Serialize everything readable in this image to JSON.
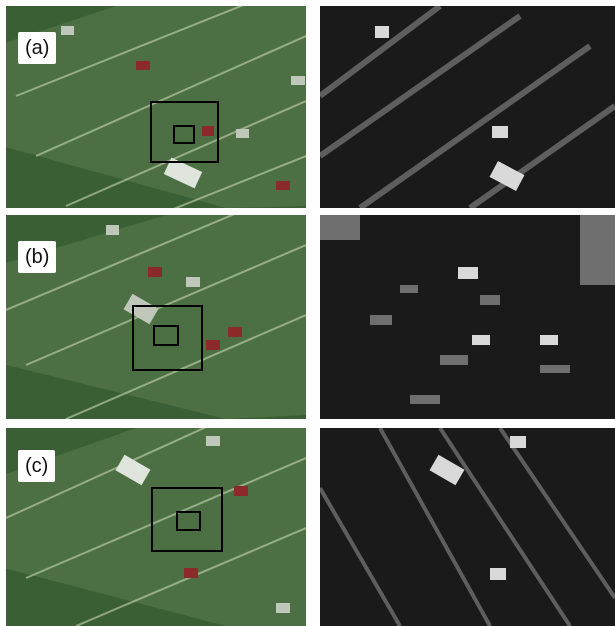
{
  "rows": [
    {
      "label": "(a)",
      "photo_icon": "aerial-highway-photo",
      "map_icon": "segmentation-map"
    },
    {
      "label": "(b)",
      "photo_icon": "aerial-highway-photo",
      "map_icon": "segmentation-map"
    },
    {
      "label": "(c)",
      "photo_icon": "aerial-highway-photo",
      "map_icon": "segmentation-map"
    }
  ],
  "colors": {
    "road": "#4a6e3f",
    "grass": "#3f6a33",
    "lane_marking": "#c9d6b4",
    "box": "#000000",
    "map_dark": "#1a1a1a",
    "map_mid": "#6f6f6f",
    "map_light": "#d9d9d9"
  }
}
